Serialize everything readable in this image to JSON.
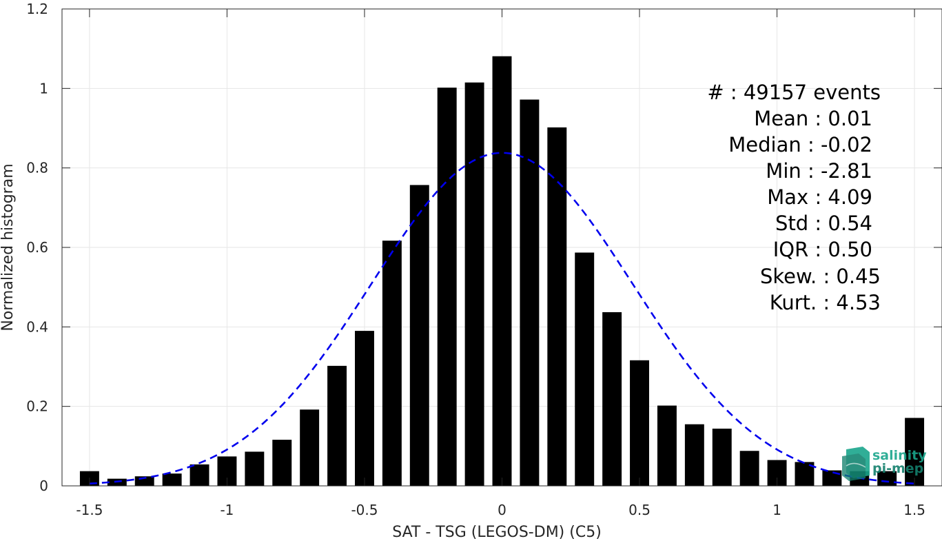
{
  "chart_data": {
    "type": "bar",
    "xlabel": "SAT - TSG (LEGOS-DM) (C5)",
    "ylabel": "Normalized histogram",
    "xlim": [
      -1.6,
      1.6
    ],
    "ylim": [
      0,
      1.2
    ],
    "xticks": [
      -1.5,
      -1,
      -0.5,
      0,
      0.5,
      1,
      1.5
    ],
    "xtick_labels": [
      "-1.5",
      "-1",
      "-0.5",
      "0",
      "0.5",
      "1",
      "1.5"
    ],
    "yticks": [
      0,
      0.2,
      0.4,
      0.6,
      0.8,
      1,
      1.2
    ],
    "ytick_labels": [
      "0",
      "0.2",
      "0.4",
      "0.6",
      "0.8",
      "1",
      "1.2"
    ],
    "grid": true,
    "bar_width": 0.07,
    "bar_color": "#000000",
    "bins": [
      -1.5,
      -1.4,
      -1.3,
      -1.2,
      -1.1,
      -1.0,
      -0.9,
      -0.8,
      -0.7,
      -0.6,
      -0.5,
      -0.4,
      -0.3,
      -0.2,
      -0.1,
      0.0,
      0.1,
      0.2,
      0.3,
      0.4,
      0.5,
      0.6,
      0.7,
      0.8,
      0.9,
      1.0,
      1.1,
      1.2,
      1.3,
      1.4,
      1.5
    ],
    "values": [
      0.037,
      0.018,
      0.024,
      0.031,
      0.054,
      0.074,
      0.086,
      0.116,
      0.192,
      0.302,
      0.39,
      0.617,
      0.757,
      1.002,
      1.015,
      1.081,
      0.972,
      0.902,
      0.587,
      0.437,
      0.316,
      0.202,
      0.155,
      0.144,
      0.088,
      0.065,
      0.06,
      0.039,
      0.037,
      0.037,
      0.171
    ],
    "fit_curve": {
      "type": "gaussian",
      "mean": 0.0,
      "std": 0.475,
      "peak": 0.838,
      "x_range": [
        -1.5,
        1.5
      ],
      "color": "#0000ee",
      "style": "dashed"
    }
  },
  "stats": [
    {
      "label": "#  : 49157 events"
    },
    {
      "label": "Mean : 0.01"
    },
    {
      "label": "Median : -0.02"
    },
    {
      "label": "Min : -2.81"
    },
    {
      "label": "Max : 4.09"
    },
    {
      "label": "Std : 0.54"
    },
    {
      "label": "IQR : 0.50"
    },
    {
      "label": "Skew. : 0.45"
    },
    {
      "label": "Kurt. : 4.53"
    }
  ],
  "logo": {
    "line1": "salinity",
    "line2": "pi-mep",
    "color": "#1aa68c"
  }
}
